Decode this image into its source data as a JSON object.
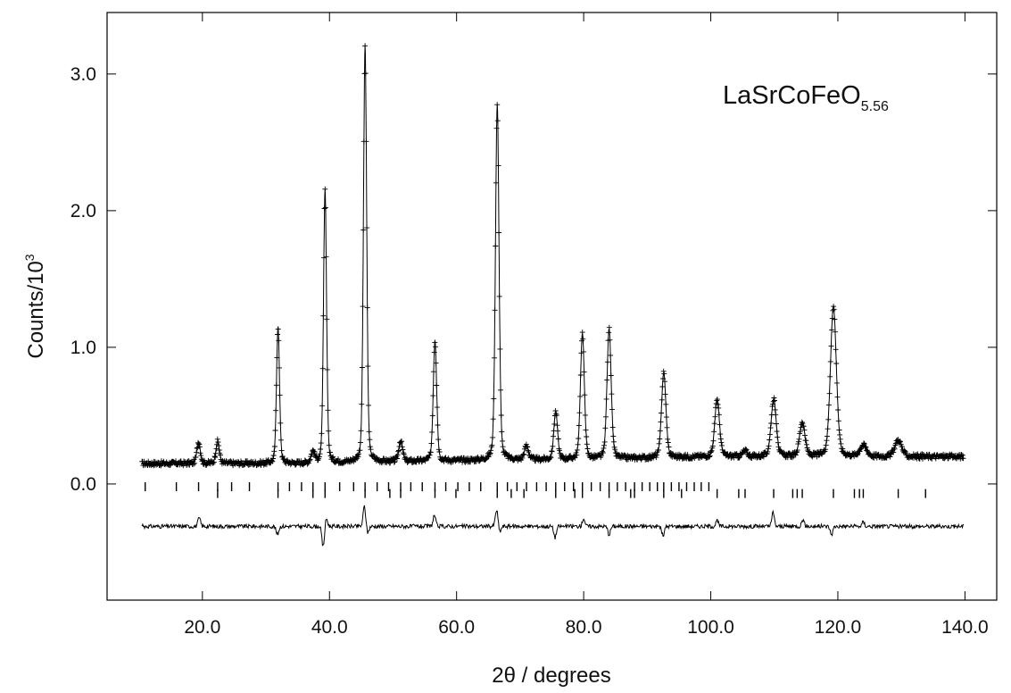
{
  "chart_data": {
    "type": "scatter",
    "title": "",
    "annotation": {
      "base": "LaSrCoFeO",
      "subscript": "5.56"
    },
    "xlabel": "2θ / degrees",
    "ylabel": {
      "base": "Counts/10",
      "superscript": "3"
    },
    "xlim": [
      5.0,
      145.0
    ],
    "ylim": [
      -0.85,
      3.45
    ],
    "x_ticks": [
      {
        "value": 20,
        "label": "20.0"
      },
      {
        "value": 40,
        "label": "40.0"
      },
      {
        "value": 60,
        "label": "60.0"
      },
      {
        "value": 80,
        "label": "80.0"
      },
      {
        "value": 100,
        "label": "100.0"
      },
      {
        "value": 120,
        "label": "120.0"
      },
      {
        "value": 140,
        "label": "140.0"
      }
    ],
    "y_ticks": [
      {
        "value": 0.0,
        "label": "0.0"
      },
      {
        "value": 1.0,
        "label": "1.0"
      },
      {
        "value": 2.0,
        "label": "2.0"
      },
      {
        "value": 3.0,
        "label": "3.0"
      }
    ],
    "x_range": [
      10.5,
      139.8
    ],
    "background": {
      "points": [
        [
          10.5,
          0.15
        ],
        [
          20,
          0.15
        ],
        [
          35,
          0.15
        ],
        [
          60,
          0.17
        ],
        [
          80,
          0.18
        ],
        [
          100,
          0.2
        ],
        [
          120,
          0.2
        ],
        [
          139.8,
          0.2
        ]
      ]
    },
    "peaks": [
      {
        "x": 19.4,
        "height": 0.16,
        "width": 0.45
      },
      {
        "x": 22.4,
        "height": 0.16,
        "width": 0.45
      },
      {
        "x": 31.9,
        "height": 1.0,
        "width": 0.4
      },
      {
        "x": 37.4,
        "height": 0.08,
        "width": 0.5
      },
      {
        "x": 39.3,
        "height": 2.0,
        "width": 0.4
      },
      {
        "x": 45.6,
        "height": 3.05,
        "width": 0.42
      },
      {
        "x": 51.2,
        "height": 0.15,
        "width": 0.5
      },
      {
        "x": 56.6,
        "height": 0.88,
        "width": 0.45
      },
      {
        "x": 66.4,
        "height": 2.6,
        "width": 0.47
      },
      {
        "x": 71.0,
        "height": 0.1,
        "width": 0.55
      },
      {
        "x": 75.6,
        "height": 0.35,
        "width": 0.5
      },
      {
        "x": 79.8,
        "height": 0.92,
        "width": 0.52
      },
      {
        "x": 84.0,
        "height": 0.95,
        "width": 0.55
      },
      {
        "x": 92.6,
        "height": 0.62,
        "width": 0.58
      },
      {
        "x": 101.0,
        "height": 0.42,
        "width": 0.62
      },
      {
        "x": 105.4,
        "height": 0.04,
        "width": 0.6
      },
      {
        "x": 109.9,
        "height": 0.42,
        "width": 0.68
      },
      {
        "x": 114.4,
        "height": 0.25,
        "width": 0.7
      },
      {
        "x": 119.3,
        "height": 1.1,
        "width": 0.78
      },
      {
        "x": 124.0,
        "height": 0.08,
        "width": 0.9
      },
      {
        "x": 129.5,
        "height": 0.12,
        "width": 0.9
      }
    ],
    "difference_offset": -0.31,
    "difference_spikes": [
      {
        "x": 19.5,
        "delta": 0.06
      },
      {
        "x": 31.8,
        "delta": -0.06
      },
      {
        "x": 39.0,
        "delta": -0.15
      },
      {
        "x": 39.5,
        "delta": 0.06
      },
      {
        "x": 45.5,
        "delta": 0.15
      },
      {
        "x": 46.0,
        "delta": -0.05
      },
      {
        "x": 56.5,
        "delta": 0.08
      },
      {
        "x": 66.3,
        "delta": 0.12
      },
      {
        "x": 66.8,
        "delta": -0.04
      },
      {
        "x": 75.5,
        "delta": -0.08
      },
      {
        "x": 80.0,
        "delta": 0.06
      },
      {
        "x": 84.0,
        "delta": -0.06
      },
      {
        "x": 92.5,
        "delta": -0.07
      },
      {
        "x": 101.0,
        "delta": 0.04
      },
      {
        "x": 109.8,
        "delta": 0.1
      },
      {
        "x": 114.5,
        "delta": 0.05
      },
      {
        "x": 119.0,
        "delta": -0.06
      },
      {
        "x": 124.0,
        "delta": 0.03
      }
    ],
    "reflection_rows": [
      {
        "y": -0.02,
        "positions": [
          11.0,
          15.9,
          19.4,
          22.4,
          24.6,
          27.4,
          31.9,
          33.7,
          35.6,
          37.4,
          39.3,
          41.6,
          43.8,
          45.6,
          47.5,
          49.3,
          51.2,
          52.8,
          54.6,
          56.6,
          58.3,
          60.2,
          62.0,
          63.8,
          66.4,
          68.0,
          69.5,
          71.0,
          72.6,
          74.1,
          75.6,
          77.0,
          78.4,
          79.8,
          81.2,
          82.6,
          84.0,
          85.3,
          86.6,
          88.0,
          89.2,
          90.4,
          91.6,
          92.6,
          93.8,
          95.0,
          96.2,
          97.4,
          98.5,
          99.7
        ]
      },
      {
        "y": -0.07,
        "positions": [
          22.4,
          31.9,
          37.4,
          39.3,
          45.6,
          49.5,
          51.2,
          56.6,
          59.9,
          66.4,
          68.6,
          70.6,
          75.6,
          78.6,
          79.8,
          84.0,
          87.4,
          88.0,
          92.6,
          95.4,
          101.0,
          104.4,
          105.4,
          109.9,
          112.9,
          113.6,
          114.4,
          119.3,
          122.6,
          123.4,
          124.0,
          129.5,
          133.8
        ]
      }
    ]
  }
}
